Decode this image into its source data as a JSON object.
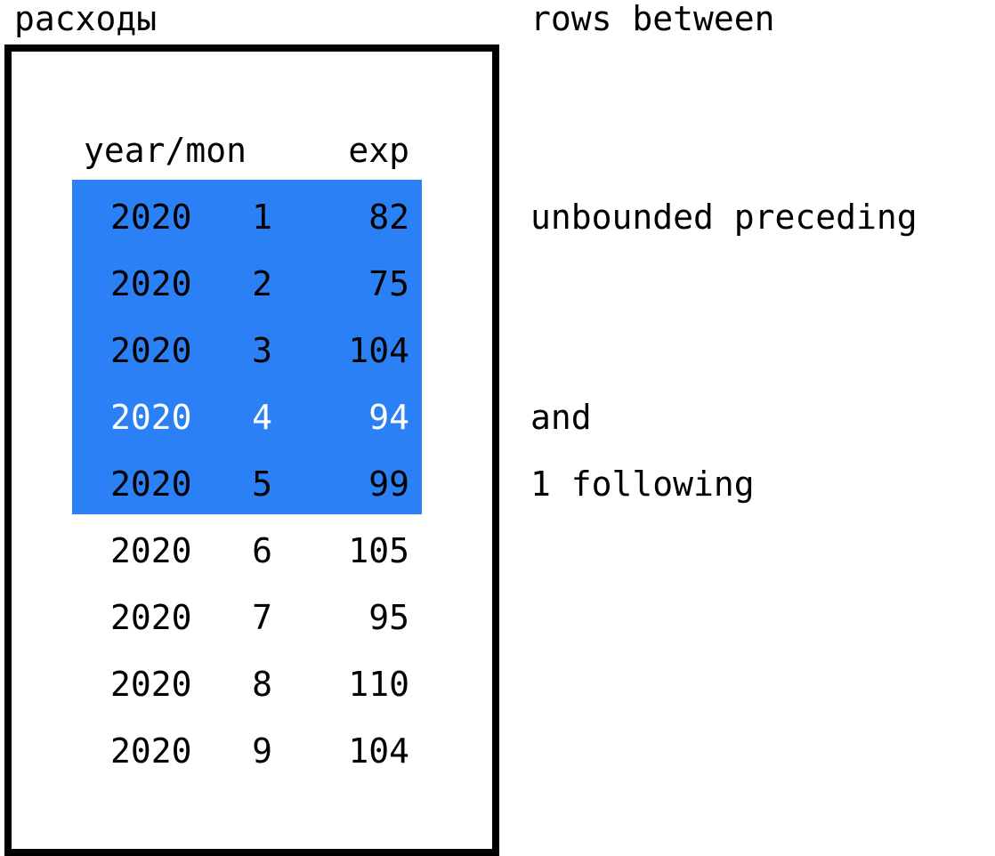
{
  "table": {
    "title": "расходы",
    "header": {
      "year_mon": "year/mon",
      "exp": "exp"
    },
    "rows": [
      {
        "year": "2020",
        "mon": "1",
        "exp": "82",
        "in_window": true,
        "current": false
      },
      {
        "year": "2020",
        "mon": "2",
        "exp": "75",
        "in_window": true,
        "current": false
      },
      {
        "year": "2020",
        "mon": "3",
        "exp": "104",
        "in_window": true,
        "current": false
      },
      {
        "year": "2020",
        "mon": "4",
        "exp": "94",
        "in_window": true,
        "current": true
      },
      {
        "year": "2020",
        "mon": "5",
        "exp": "99",
        "in_window": true,
        "current": false
      },
      {
        "year": "2020",
        "mon": "6",
        "exp": "105",
        "in_window": false,
        "current": false
      },
      {
        "year": "2020",
        "mon": "7",
        "exp": "95",
        "in_window": false,
        "current": false
      },
      {
        "year": "2020",
        "mon": "8",
        "exp": "110",
        "in_window": false,
        "current": false
      },
      {
        "year": "2020",
        "mon": "9",
        "exp": "104",
        "in_window": false,
        "current": false
      }
    ]
  },
  "frame_clause": {
    "rows_between": "rows between",
    "start": "unbounded preceding",
    "and": "and",
    "end": "1 following"
  },
  "colors": {
    "window_highlight": "#2b80f5",
    "current_row_text": "#ffffff",
    "text": "#000000"
  }
}
